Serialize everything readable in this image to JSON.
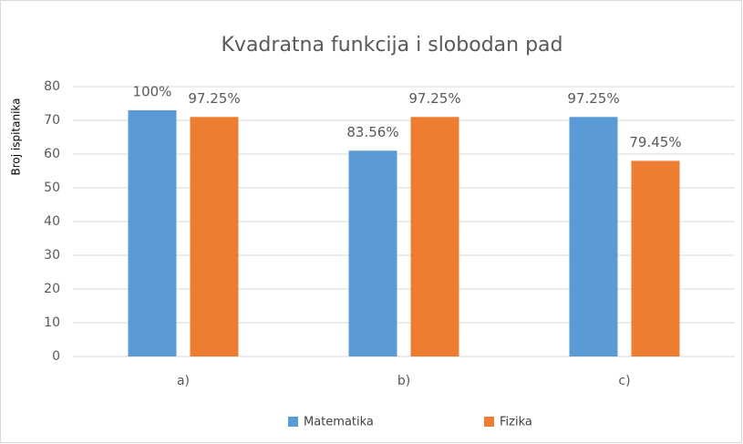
{
  "chart_data": {
    "type": "bar",
    "title": "Kvadratna funkcija i slobodan pad",
    "y_label": "Broj ispitanika",
    "categories": [
      "a)",
      "b)",
      "c)"
    ],
    "series": [
      {
        "name": "Matematika",
        "color": "#5b9bd5",
        "values": [
          73,
          61,
          71
        ],
        "value_labels": [
          "100%",
          "83.56%",
          "97.25%"
        ]
      },
      {
        "name": "Fizika",
        "color": "#ed7d31",
        "values": [
          71,
          71,
          58
        ],
        "value_labels": [
          "97.25%",
          "97.25%",
          "79.45%"
        ]
      }
    ],
    "ylim": [
      0,
      80
    ],
    "yticks": [
      0,
      10,
      20,
      30,
      40,
      50,
      60,
      70,
      80
    ],
    "grid": true,
    "legend": "bottom"
  }
}
